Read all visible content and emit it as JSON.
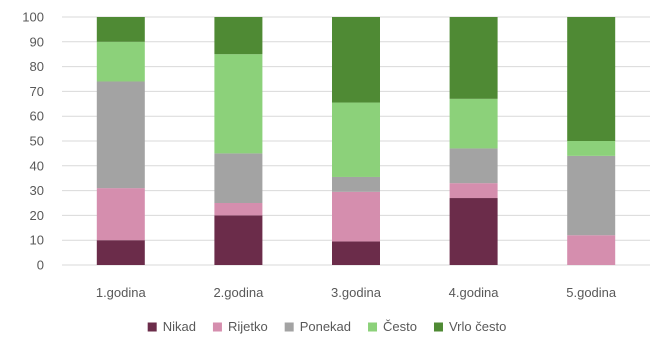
{
  "chart_data": {
    "type": "bar",
    "stacked": true,
    "title": "",
    "xlabel": "",
    "ylabel": "",
    "ylim": [
      0,
      100
    ],
    "yticks": [
      0,
      10,
      20,
      30,
      40,
      50,
      60,
      70,
      80,
      90,
      100
    ],
    "grid": true,
    "legend_position": "bottom",
    "categories": [
      "1.godina",
      "2.godina",
      "3.godina",
      "4.godina",
      "5.godina"
    ],
    "series": [
      {
        "name": "Nikad",
        "color": "#6b2c4a",
        "values": [
          10,
          20,
          9.5,
          27,
          0
        ]
      },
      {
        "name": "Rijetko",
        "color": "#d58eae",
        "values": [
          21,
          5,
          20,
          6,
          12
        ]
      },
      {
        "name": "Ponekad",
        "color": "#a3a3a3",
        "values": [
          43,
          20,
          6,
          14,
          32
        ]
      },
      {
        "name": "Često",
        "color": "#8cd17a",
        "values": [
          16,
          40,
          30,
          20,
          6
        ]
      },
      {
        "name": "Vrlo često",
        "color": "#4f8a34",
        "values": [
          10,
          15,
          34.5,
          33,
          50
        ]
      }
    ]
  }
}
